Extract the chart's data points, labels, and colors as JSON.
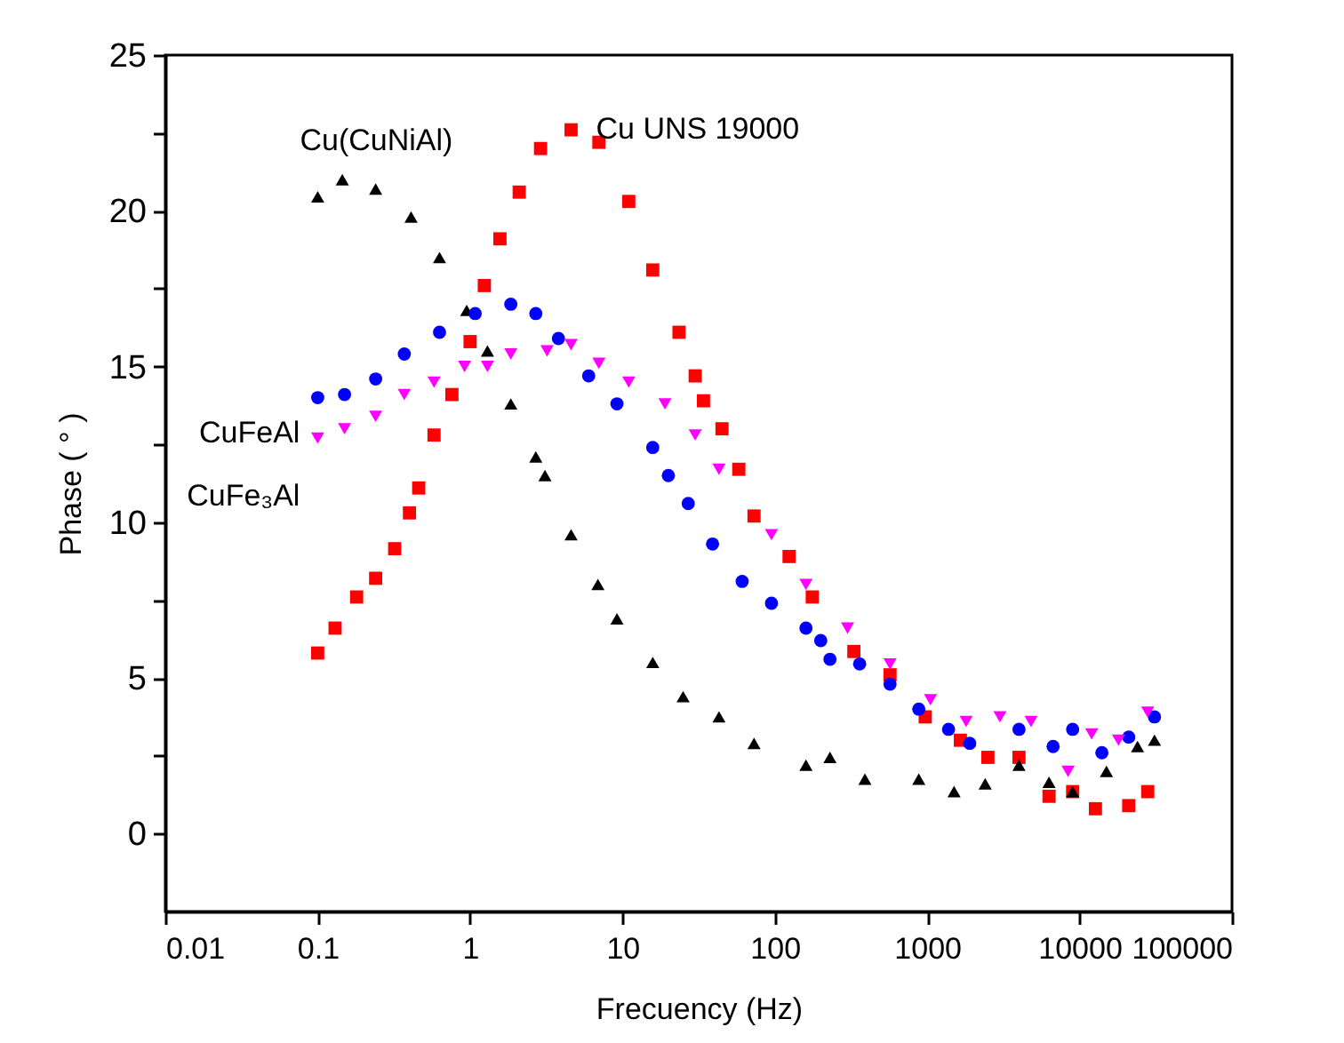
{
  "chart_data": {
    "type": "scatter",
    "xlabel": "Frecuency (Hz)",
    "ylabel": "Phase ( ° )",
    "log": "x",
    "xlim": [
      0.01,
      100000
    ],
    "xticks": [
      0.01,
      0.1,
      1,
      10,
      100,
      1000,
      10000,
      100000
    ],
    "ylim": [
      -2.5,
      25
    ],
    "yticks": [
      0,
      {
        "value": 2.5,
        "label": null
      },
      5,
      {
        "value": 7.5,
        "label": null
      },
      10,
      {
        "value": 12.5,
        "label": null
      },
      15,
      {
        "value": 17.5,
        "label": null
      },
      20,
      {
        "value": 22.5,
        "label": null
      },
      25
    ],
    "grid": false,
    "series": [
      {
        "name": "Cu UNS 19000",
        "color": "#ff0000",
        "marker": "square",
        "x": [
          0.1,
          0.13,
          0.18,
          0.24,
          0.32,
          0.4,
          0.46,
          0.58,
          0.76,
          1.0,
          1.24,
          1.57,
          2.1,
          2.9,
          4.6,
          7.0,
          11,
          15.8,
          23.5,
          30,
          34,
          45,
          58,
          73,
          124,
          176,
          330,
          570,
          970,
          1650,
          2500,
          4000,
          6300,
          9000,
          12700,
          21000,
          28000
        ],
        "values": [
          5.8,
          6.6,
          7.6,
          8.2,
          9.15,
          10.3,
          11.1,
          12.8,
          14.1,
          15.8,
          17.6,
          19.1,
          20.6,
          22.0,
          22.6,
          22.2,
          20.3,
          18.1,
          16.1,
          14.7,
          13.9,
          13.0,
          11.7,
          10.2,
          8.9,
          7.6,
          5.85,
          5.1,
          3.75,
          3.0,
          2.45,
          2.45,
          1.2,
          1.35,
          0.8,
          0.9,
          1.35
        ]
      },
      {
        "name": "Cu(CuNiAl)",
        "color": "#000000",
        "marker": "triangle",
        "x": [
          0.1,
          0.145,
          0.24,
          0.41,
          0.63,
          0.95,
          1.3,
          1.85,
          2.7,
          3.1,
          4.6,
          6.9,
          9.2,
          15.8,
          25,
          43,
          73,
          160,
          230,
          390,
          880,
          1500,
          2400,
          4000,
          6300,
          9000,
          15000,
          24000,
          31000
        ],
        "values": [
          20.45,
          21.0,
          20.7,
          19.8,
          18.5,
          16.8,
          15.5,
          13.8,
          12.1,
          11.5,
          9.6,
          8.0,
          6.9,
          5.5,
          4.4,
          3.75,
          2.9,
          2.2,
          2.45,
          1.75,
          1.75,
          1.35,
          1.6,
          2.2,
          1.65,
          1.35,
          2.0,
          2.8,
          3.0
        ]
      },
      {
        "name": "CuFeAl",
        "color": "#0000ff",
        "marker": "circle",
        "x": [
          0.1,
          0.15,
          0.24,
          0.37,
          0.63,
          1.08,
          1.85,
          2.7,
          3.8,
          6.0,
          9.2,
          15.8,
          20,
          27,
          39,
          61,
          95,
          160,
          200,
          230,
          360,
          570,
          880,
          1380,
          1900,
          4000,
          6700,
          9000,
          14000,
          21000,
          31000
        ],
        "values": [
          14.0,
          14.1,
          14.6,
          15.4,
          16.1,
          16.7,
          17.0,
          16.7,
          15.9,
          14.7,
          13.8,
          12.4,
          11.5,
          10.6,
          9.3,
          8.1,
          7.4,
          6.6,
          6.2,
          5.6,
          5.45,
          4.8,
          4.0,
          3.35,
          2.9,
          3.35,
          2.8,
          3.35,
          2.6,
          3.1,
          3.75
        ]
      },
      {
        "name": "CuFe₃Al",
        "color": "#ff00ff",
        "marker": "triangle-down",
        "x": [
          0.1,
          0.15,
          0.24,
          0.37,
          0.58,
          0.92,
          1.3,
          1.85,
          3.2,
          4.6,
          7.0,
          11,
          19,
          30,
          43,
          95,
          160,
          300,
          570,
          1050,
          1800,
          3000,
          4800,
          8400,
          12000,
          18000,
          28000
        ],
        "values": [
          12.7,
          13.0,
          13.4,
          14.1,
          14.5,
          15.0,
          15.0,
          15.4,
          15.5,
          15.7,
          15.1,
          14.5,
          13.8,
          12.8,
          11.7,
          9.6,
          8.0,
          6.6,
          5.45,
          4.3,
          3.6,
          3.75,
          3.6,
          2.0,
          3.2,
          3.0,
          3.9
        ]
      }
    ]
  }
}
